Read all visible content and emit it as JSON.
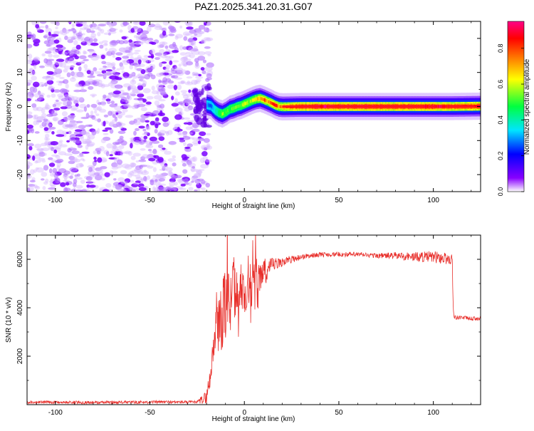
{
  "figure": {
    "title": "PAZ1.2025.341.20.31.G07"
  },
  "chart_data": [
    {
      "type": "heatmap",
      "xlabel": "Height of straight line (km)",
      "ylabel": "Frequency (Hz)",
      "xlim": [
        -115,
        125
      ],
      "ylim": [
        -25,
        25
      ],
      "xticks": [
        -100,
        -50,
        0,
        50,
        100
      ],
      "xtick_labels": [
        "-100",
        "-50",
        "0",
        "50",
        "100"
      ],
      "yticks": [
        -20,
        -10,
        0,
        10,
        20
      ],
      "ytick_labels": [
        "-20",
        "-10",
        "0",
        "10",
        "20"
      ],
      "colorbar": {
        "label": "Normalized spectral amplitude",
        "range": [
          0.0,
          0.95
        ],
        "ticks": [
          0.0,
          0.2,
          0.4,
          0.6,
          0.8
        ],
        "tick_labels": [
          "0.0",
          "0.2",
          "0.4",
          "0.6",
          "0.8"
        ],
        "colors": [
          "#ffffff",
          "#8800ff",
          "#0000ff",
          "#00e5ff",
          "#00ff40",
          "#ffff00",
          "#ff8000",
          "#ff0000",
          "#ff0088"
        ]
      },
      "noise_region_km": [
        -115,
        -20
      ],
      "signal_track": {
        "x": [
          -20,
          -18,
          -16,
          -14,
          -12,
          -10,
          -8,
          -6,
          -4,
          -2,
          0,
          2,
          4,
          6,
          8,
          10,
          12,
          14,
          16,
          18,
          20,
          30,
          40,
          60,
          80,
          100,
          110,
          125
        ],
        "freq": [
          0.5,
          0.2,
          -1.0,
          -1.8,
          -2.2,
          -1.6,
          -0.8,
          -0.5,
          0.0,
          0.3,
          0.8,
          1.3,
          1.8,
          2.2,
          2.4,
          2.0,
          1.5,
          1.0,
          0.4,
          0.0,
          -0.1,
          0.0,
          0.0,
          0.0,
          0.0,
          0.0,
          0.0,
          0.1
        ],
        "amplitude": [
          0.3,
          0.25,
          0.35,
          0.45,
          0.55,
          0.5,
          0.5,
          0.55,
          0.5,
          0.55,
          0.6,
          0.55,
          0.6,
          0.65,
          0.7,
          0.8,
          0.7,
          0.75,
          0.85,
          0.7,
          0.75,
          0.88,
          0.9,
          0.9,
          0.88,
          0.9,
          0.85,
          0.88
        ]
      }
    },
    {
      "type": "line",
      "xlabel": "Height of straight line (km)",
      "ylabel": "SNR (10 * v/v)",
      "xlim": [
        -115,
        125
      ],
      "ylim": [
        0,
        7000
      ],
      "xticks": [
        -100,
        -50,
        0,
        50,
        100
      ],
      "xtick_labels": [
        "-100",
        "-50",
        "0",
        "50",
        "100"
      ],
      "yticks": [
        2000,
        4000,
        6000
      ],
      "ytick_labels": [
        "2000",
        "4000",
        "6000"
      ],
      "series": [
        {
          "name": "SNR",
          "color": "#e8302c",
          "x": [
            -115,
            -100,
            -80,
            -60,
            -40,
            -25,
            -20,
            -18,
            -16,
            -15,
            -14,
            -13,
            -12,
            -11,
            -10,
            -9,
            -8,
            -6,
            -4,
            -2,
            0,
            2,
            4,
            6,
            8,
            10,
            12,
            14,
            16,
            18,
            20,
            25,
            30,
            35,
            40,
            50,
            60,
            70,
            80,
            90,
            100,
            105,
            110,
            110.5,
            111,
            115,
            120,
            125
          ],
          "y": [
            100,
            100,
            90,
            100,
            110,
            100,
            300,
            1200,
            2600,
            3700,
            3000,
            4000,
            3200,
            4500,
            3600,
            4900,
            4100,
            5000,
            4300,
            5100,
            4500,
            5200,
            4700,
            5400,
            5000,
            5600,
            5400,
            5700,
            5800,
            5800,
            5900,
            6000,
            6100,
            6150,
            6200,
            6200,
            6200,
            6150,
            6150,
            6100,
            6100,
            6050,
            6000,
            4000,
            3600,
            3600,
            3550,
            3550
          ],
          "noise_amplitude": [
            60,
            60,
            60,
            60,
            60,
            60,
            300,
            500,
            900,
            1100,
            1400,
            1600,
            1700,
            1700,
            1600,
            1500,
            1400,
            1300,
            1200,
            1100,
            1100,
            1000,
            900,
            800,
            700,
            600,
            450,
            350,
            300,
            250,
            200,
            150,
            120,
            100,
            100,
            100,
            100,
            100,
            150,
            200,
            250,
            250,
            250,
            100,
            100,
            80,
            80,
            80
          ]
        }
      ]
    }
  ]
}
